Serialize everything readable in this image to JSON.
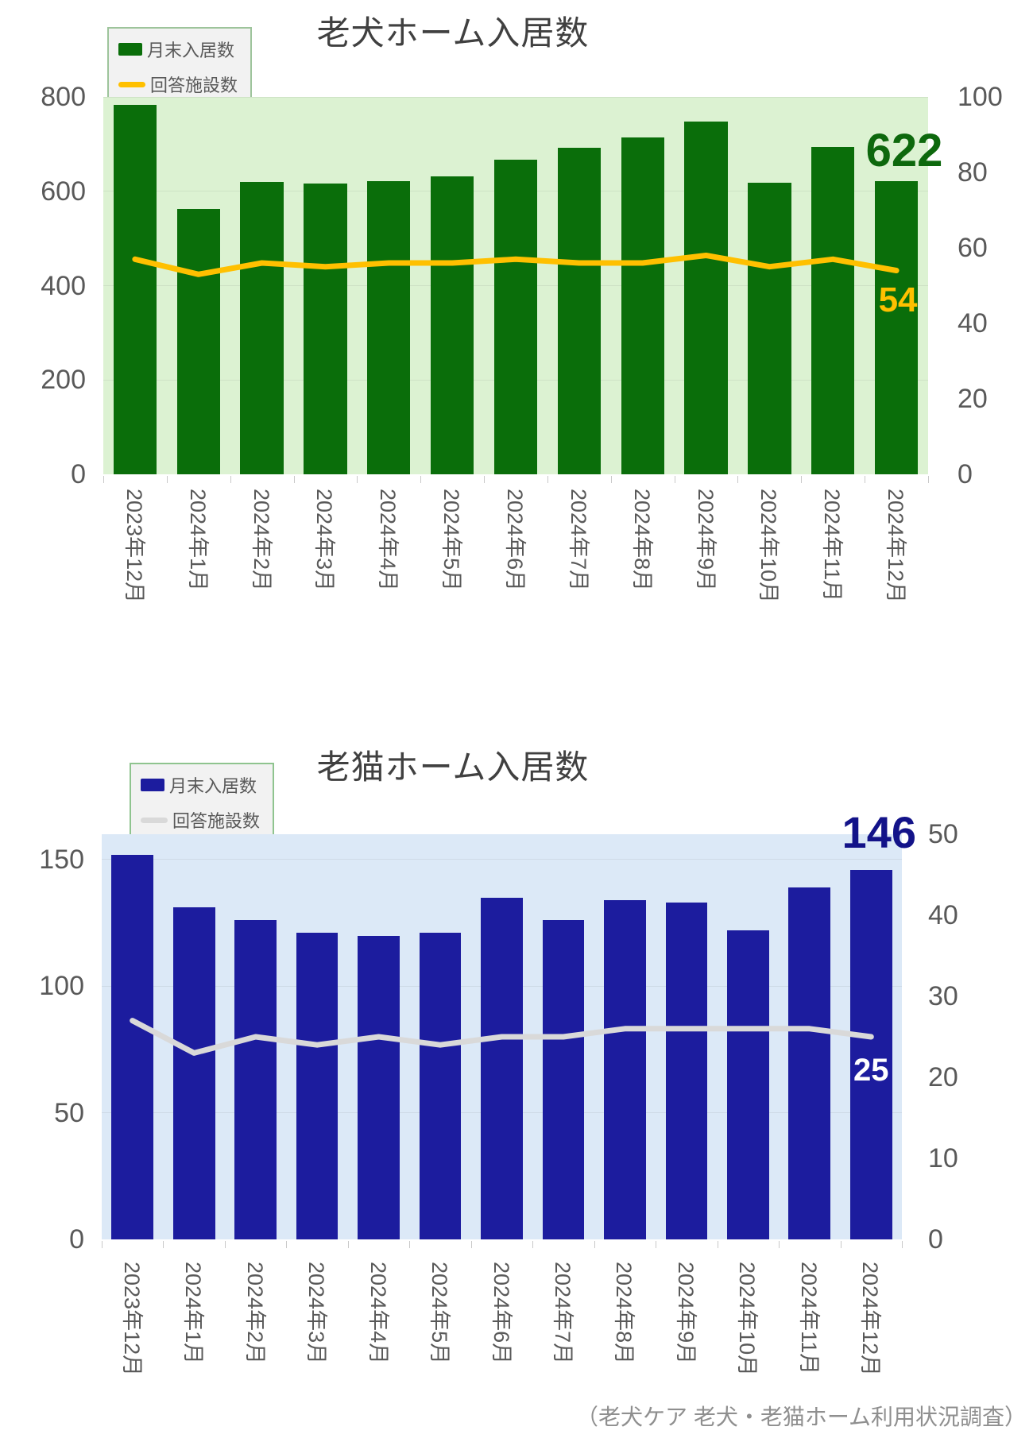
{
  "footer": "（老犬ケア 老犬・老猫ホーム利用状況調査）",
  "chart_data": [
    {
      "type": "bar",
      "title": "老犬ホーム入居数",
      "categories": [
        "2023年12月",
        "2024年1月",
        "2024年2月",
        "2024年3月",
        "2024年4月",
        "2024年5月",
        "2024年6月",
        "2024年7月",
        "2024年8月",
        "2024年9月",
        "2024年10月",
        "2024年11月",
        "2024年12月"
      ],
      "series": [
        {
          "name": "月末入居数",
          "type": "bar",
          "axis": "left",
          "color": "#0A6E0A",
          "values": [
            783,
            563,
            619,
            617,
            621,
            631,
            667,
            693,
            714,
            747,
            618,
            694,
            622
          ]
        },
        {
          "name": "回答施設数",
          "type": "line",
          "axis": "right",
          "color": "#FFC000",
          "values": [
            57,
            53,
            56,
            55,
            56,
            56,
            57,
            56,
            56,
            58,
            55,
            57,
            54
          ]
        }
      ],
      "left_axis": {
        "ticks": [
          0,
          200,
          400,
          600,
          800
        ],
        "max": 800
      },
      "right_axis": {
        "ticks": [
          0,
          20,
          40,
          60,
          80,
          100
        ],
        "max": 100
      },
      "annotations": {
        "bar_end_label": "622",
        "line_end_label": "54"
      },
      "bar_end_label_color": "#0D680D",
      "line_end_label_color": "#FFC000",
      "plot_bg": "#DCF2D2",
      "grid": true,
      "legend_position": "top-left"
    },
    {
      "type": "bar",
      "title": "老猫ホーム入居数",
      "categories": [
        "2023年12月",
        "2024年1月",
        "2024年2月",
        "2024年3月",
        "2024年4月",
        "2024年5月",
        "2024年6月",
        "2024年7月",
        "2024年8月",
        "2024年9月",
        "2024年10月",
        "2024年11月",
        "2024年12月"
      ],
      "series": [
        {
          "name": "月末入居数",
          "type": "bar",
          "axis": "left",
          "color": "#1C1C9E",
          "values": [
            152,
            131,
            126,
            121,
            120,
            121,
            135,
            126,
            134,
            133,
            122,
            139,
            146
          ]
        },
        {
          "name": "回答施設数",
          "type": "line",
          "axis": "right",
          "color": "#D9D9D9",
          "values": [
            27,
            23,
            25,
            24,
            25,
            24,
            25,
            25,
            26,
            26,
            26,
            26,
            25
          ]
        }
      ],
      "left_axis": {
        "ticks": [
          0,
          50,
          100,
          150
        ],
        "max": 160
      },
      "right_axis": {
        "ticks": [
          0,
          10,
          20,
          30,
          40,
          50
        ],
        "max": 50
      },
      "annotations": {
        "bar_end_label": "146",
        "line_end_label": "25"
      },
      "bar_end_label_color": "#131389",
      "line_end_label_color": "#FFFFFF",
      "plot_bg": "#DCE9F7",
      "grid": true,
      "legend_position": "top-left"
    }
  ]
}
